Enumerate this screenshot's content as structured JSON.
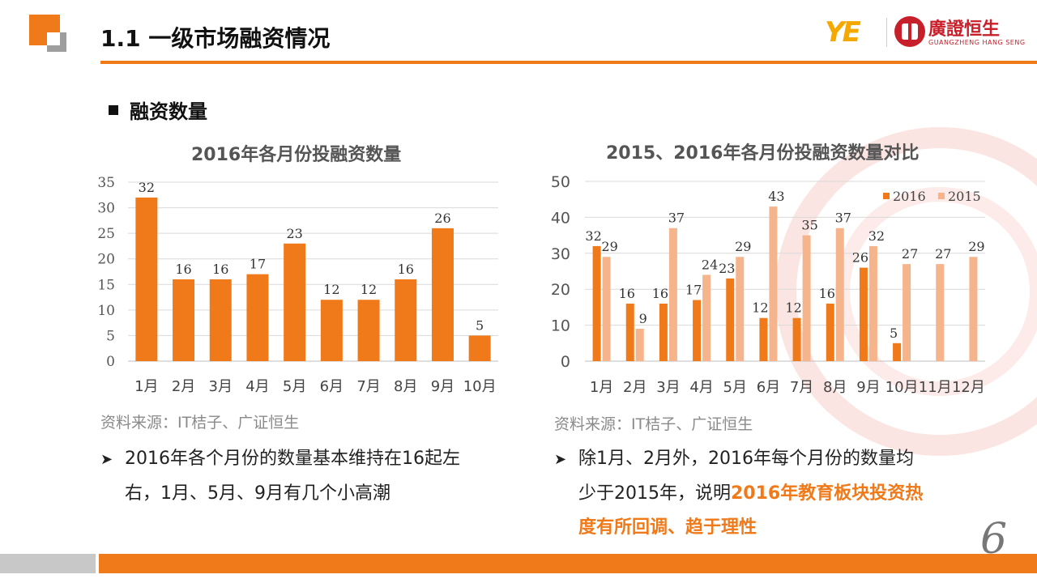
{
  "slide": {
    "title": "1.1 一级市场融资情况",
    "section": "融资数量",
    "page_number": "6"
  },
  "brand": {
    "logo_text": "YE",
    "name": "廣證恒生",
    "subname": "GUANGZHENG HANG SENG"
  },
  "colors": {
    "accent": "#f07a1a",
    "bar_2016": "#f07a1a",
    "bar_2015": "#f6b48c",
    "seal": "#c8202b"
  },
  "left": {
    "source": "资料来源：IT桔子、广证恒生",
    "point_line1": "2016年各个月份的数量基本维持在16起左",
    "point_line2": "右，1月、5月、9月有几个小高潮"
  },
  "right": {
    "source": "资料来源：IT桔子、广证恒生",
    "point_line1": "除1月、2月外，2016年每个月份的数量均",
    "point_line2_prefix": "少于2015年，说明",
    "point_highlight_1": "2016年教育板块投资热",
    "point_highlight_2": "度有所回调、趋于理性"
  },
  "chart_data": [
    {
      "type": "bar",
      "title": "2016年各月份投融资数量",
      "categories": [
        "1月",
        "2月",
        "3月",
        "4月",
        "5月",
        "6月",
        "7月",
        "8月",
        "9月",
        "10月"
      ],
      "values": [
        32,
        16,
        16,
        17,
        23,
        12,
        12,
        16,
        26,
        5
      ],
      "ylim": [
        0,
        35
      ],
      "yticks": [
        0,
        5,
        10,
        15,
        20,
        25,
        30,
        35
      ],
      "grid": true,
      "legend": "none"
    },
    {
      "type": "bar",
      "title": "2015、2016年各月份投融资数量对比",
      "categories": [
        "1月",
        "2月",
        "3月",
        "4月",
        "5月",
        "6月",
        "7月",
        "8月",
        "9月",
        "10月",
        "11月",
        "12月"
      ],
      "series": [
        {
          "name": "2016",
          "values": [
            32,
            16,
            16,
            17,
            23,
            12,
            12,
            16,
            26,
            5,
            null,
            null
          ]
        },
        {
          "name": "2015",
          "values": [
            29,
            9,
            37,
            24,
            29,
            43,
            35,
            37,
            32,
            27,
            27,
            29
          ]
        }
      ],
      "ylim": [
        0,
        50
      ],
      "yticks": [
        0,
        10,
        20,
        30,
        40,
        50
      ],
      "grid": true,
      "legend": "top-right"
    }
  ]
}
